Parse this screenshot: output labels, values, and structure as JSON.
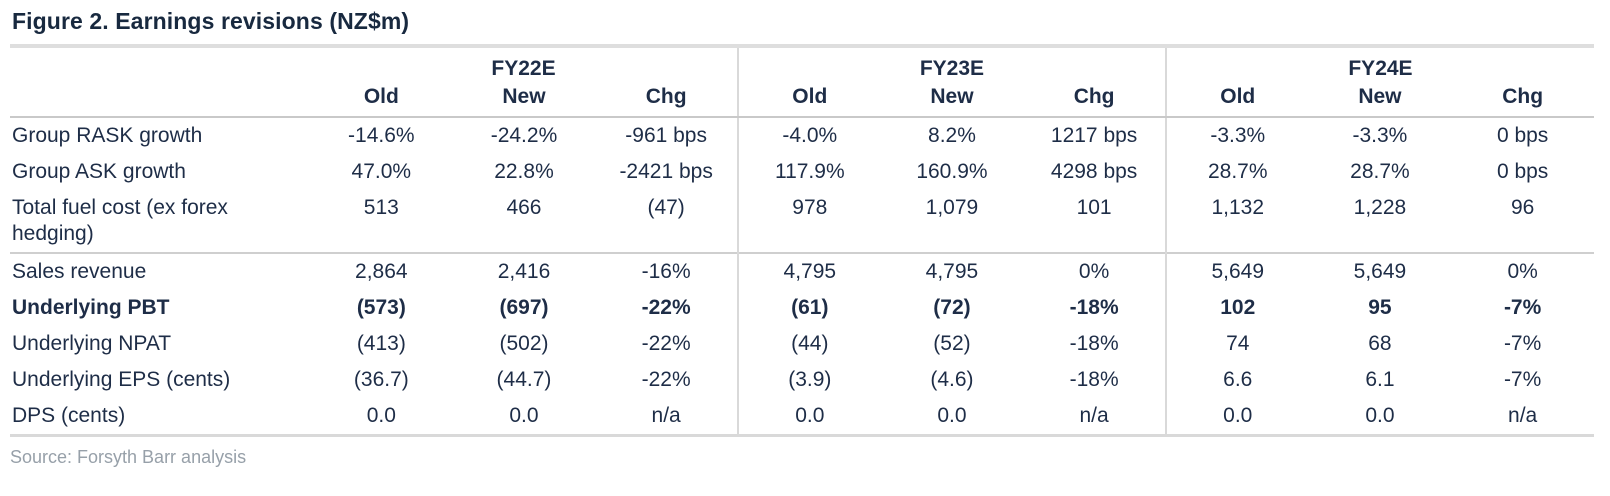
{
  "figure": {
    "title": "Figure 2. Earnings revisions (NZ$m)",
    "source": "Source: Forsyth Barr analysis"
  },
  "table": {
    "groups": [
      {
        "label": "FY22E"
      },
      {
        "label": "FY23E"
      },
      {
        "label": "FY24E"
      }
    ],
    "sub_headers": [
      "Old",
      "New",
      "Chg"
    ],
    "rows": [
      {
        "label": "Group RASK growth",
        "values": [
          "-14.6%",
          "-24.2%",
          "-961 bps",
          "-4.0%",
          "8.2%",
          "1217 bps",
          "-3.3%",
          "-3.3%",
          "0 bps"
        ]
      },
      {
        "label": "Group ASK growth",
        "values": [
          "47.0%",
          "22.8%",
          "-2421 bps",
          "117.9%",
          "160.9%",
          "4298 bps",
          "28.7%",
          "28.7%",
          "0 bps"
        ]
      },
      {
        "label": "Total fuel cost (ex forex hedging)",
        "values": [
          "513",
          "466",
          "(47)",
          "978",
          "1,079",
          "101",
          "1,132",
          "1,228",
          "96"
        ]
      },
      {
        "label": "Sales revenue",
        "values": [
          "2,864",
          "2,416",
          "-16%",
          "4,795",
          "4,795",
          "0%",
          "5,649",
          "5,649",
          "0%"
        ]
      },
      {
        "label": "Underlying PBT",
        "values": [
          "(573)",
          "(697)",
          "-22%",
          "(61)",
          "(72)",
          "-18%",
          "102",
          "95",
          "-7%"
        ]
      },
      {
        "label": "Underlying NPAT",
        "values": [
          "(413)",
          "(502)",
          "-22%",
          "(44)",
          "(52)",
          "-18%",
          "74",
          "68",
          "-7%"
        ]
      },
      {
        "label": "Underlying EPS (cents)",
        "values": [
          "(36.7)",
          "(44.7)",
          "-22%",
          "(3.9)",
          "(4.6)",
          "-18%",
          "6.6",
          "6.1",
          "-7%"
        ]
      },
      {
        "label": "DPS (cents)",
        "values": [
          "0.0",
          "0.0",
          "n/a",
          "0.0",
          "0.0",
          "n/a",
          "0.0",
          "0.0",
          "n/a"
        ]
      }
    ],
    "colors": {
      "title_text": "#18293f",
      "body_text": "#1e2d47",
      "rule_light": "#dedede",
      "rule_mid": "#c9c9c9",
      "divider": "#d9d9d9",
      "source_text": "#97a0a9"
    }
  }
}
